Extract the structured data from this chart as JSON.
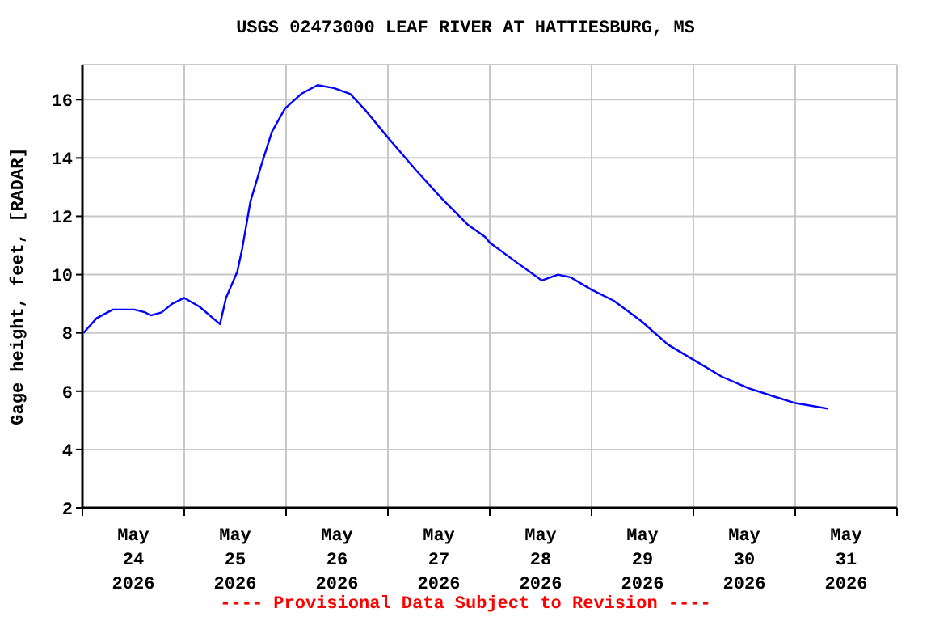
{
  "chart_data": {
    "type": "line",
    "title": "USGS 02473000 LEAF RIVER AT HATTIESBURG, MS",
    "ylabel": "Gage height, feet, [RADAR]",
    "annotations": [
      "---- Provisional Data Subject to Revision ----"
    ],
    "x": [
      "2026-05-24T00:15",
      "2026-05-24T03:20",
      "2026-05-24T07:10",
      "2026-05-24T12:15",
      "2026-05-24T14:50",
      "2026-05-24T16:05",
      "2026-05-24T18:40",
      "2026-05-24T21:10",
      "2026-05-25T00:00",
      "2026-05-25T03:35",
      "2026-05-25T06:00",
      "2026-05-25T08:25",
      "2026-05-25T09:50",
      "2026-05-25T12:30",
      "2026-05-25T13:40",
      "2026-05-25T15:35",
      "2026-05-25T18:15",
      "2026-05-25T20:40",
      "2026-05-25T23:45",
      "2026-05-26T03:35",
      "2026-05-26T07:25",
      "2026-05-26T11:15",
      "2026-05-26T15:05",
      "2026-05-26T18:55",
      "2026-05-27T00:00",
      "2026-05-27T06:30",
      "2026-05-27T12:45",
      "2026-05-27T18:55",
      "2026-05-27T22:50",
      "2026-05-28T00:00",
      "2026-05-28T06:30",
      "2026-05-28T12:15",
      "2026-05-28T16:05",
      "2026-05-28T19:10",
      "2026-05-28T23:45",
      "2026-05-29T05:15",
      "2026-05-29T11:45",
      "2026-05-29T18:00",
      "2026-05-29T23:45",
      "2026-05-30T06:40",
      "2026-05-30T13:00",
      "2026-05-30T19:25",
      "2026-05-30T23:45",
      "2026-05-31T07:40"
    ],
    "series": [
      {
        "color": "#0000ff",
        "values": [
          8.0,
          8.5,
          8.8,
          8.8,
          8.7,
          8.6,
          8.7,
          9.0,
          9.2,
          8.9,
          8.6,
          8.3,
          9.2,
          10.1,
          10.9,
          12.5,
          13.8,
          14.9,
          15.7,
          16.2,
          16.5,
          16.4,
          16.2,
          15.6,
          14.7,
          13.6,
          12.6,
          11.7,
          11.3,
          11.1,
          10.4,
          9.8,
          10.0,
          9.9,
          9.5,
          9.1,
          8.4,
          7.6,
          7.1,
          6.5,
          6.1,
          5.8,
          5.6,
          5.4
        ]
      }
    ],
    "xlim": [
      "2026-05-24T00:00",
      "2026-06-01T00:00"
    ],
    "xticks": [
      {
        "value": "2026-05-24T00:00",
        "label": null
      },
      {
        "value": "2026-05-24T12:00",
        "label": "May\n24\n2026"
      },
      {
        "value": "2026-05-25T00:00",
        "label": null
      },
      {
        "value": "2026-05-25T12:00",
        "label": "May\n25\n2026"
      },
      {
        "value": "2026-05-26T00:00",
        "label": null
      },
      {
        "value": "2026-05-26T12:00",
        "label": "May\n26\n2026"
      },
      {
        "value": "2026-05-27T00:00",
        "label": null
      },
      {
        "value": "2026-05-27T12:00",
        "label": "May\n27\n2026"
      },
      {
        "value": "2026-05-28T00:00",
        "label": null
      },
      {
        "value": "2026-05-28T12:00",
        "label": "May\n28\n2026"
      },
      {
        "value": "2026-05-29T00:00",
        "label": null
      },
      {
        "value": "2026-05-29T12:00",
        "label": "May\n29\n2026"
      },
      {
        "value": "2026-05-30T00:00",
        "label": null
      },
      {
        "value": "2026-05-30T12:00",
        "label": "May\n30\n2026"
      },
      {
        "value": "2026-05-31T00:00",
        "label": null
      },
      {
        "value": "2026-05-31T12:00",
        "label": "May\n31\n2026"
      },
      {
        "value": "2026-06-01T00:00",
        "label": null
      }
    ],
    "ylim": [
      2,
      17.2
    ],
    "yticks": [
      2,
      4,
      6,
      8,
      10,
      12,
      14,
      16
    ],
    "grid": true,
    "marker": "none",
    "line_style": "solid"
  }
}
